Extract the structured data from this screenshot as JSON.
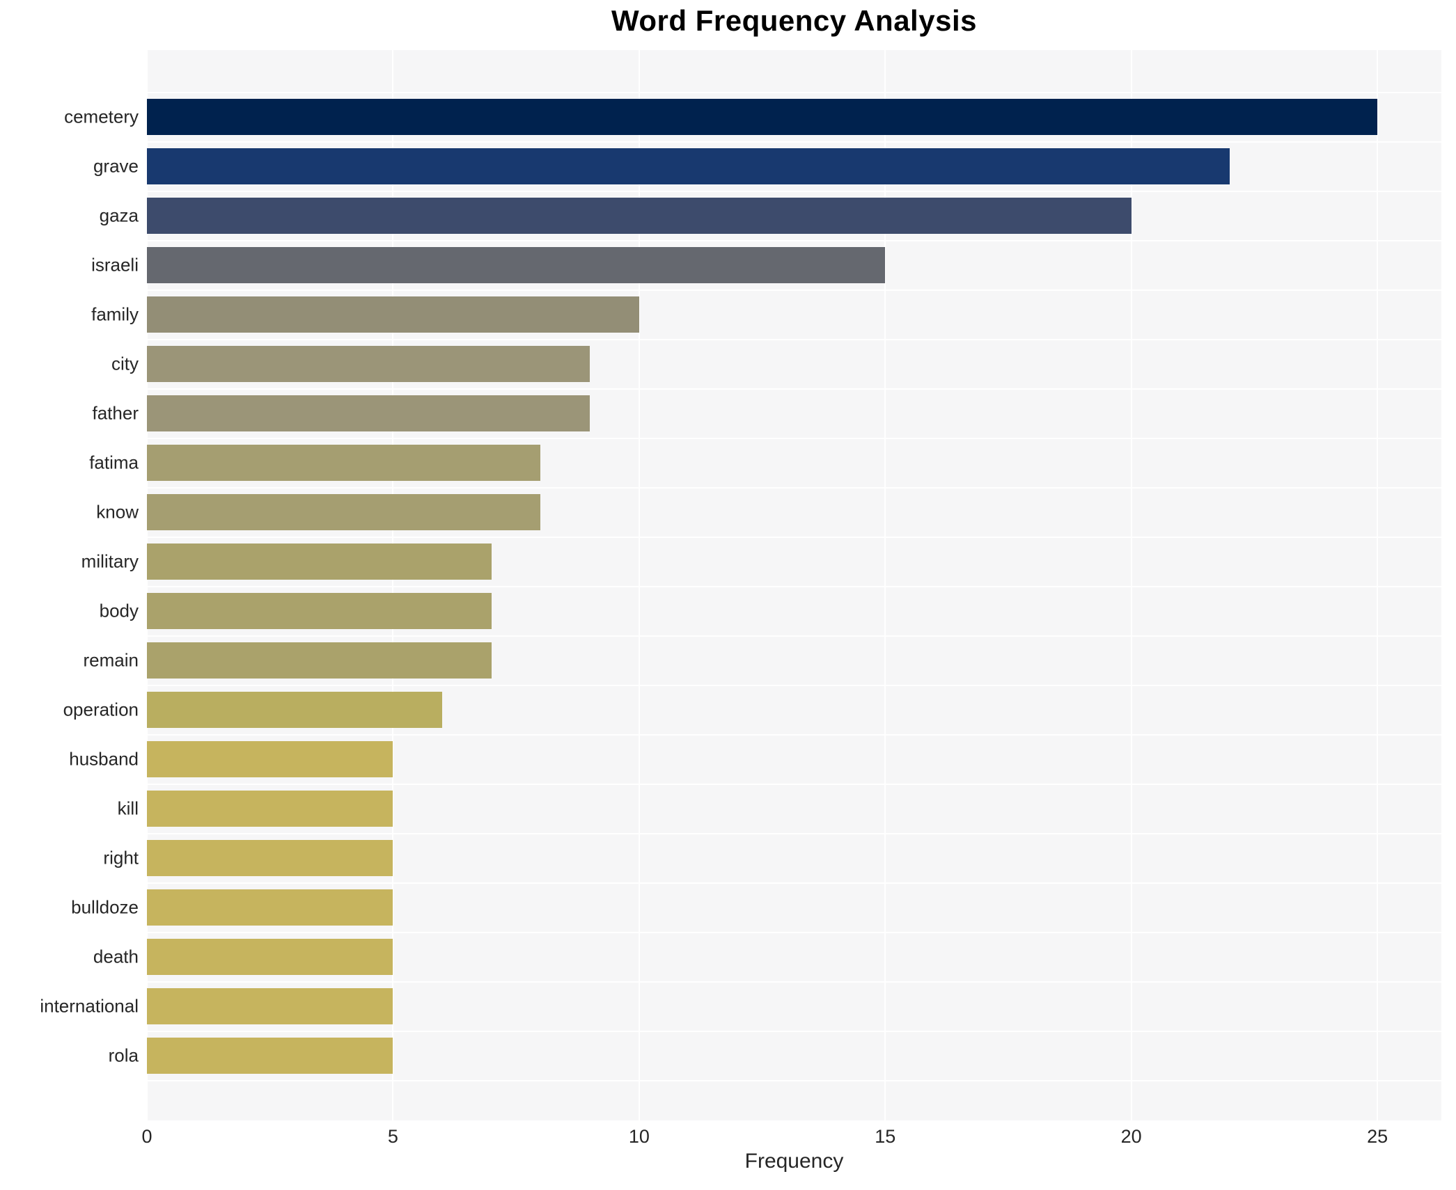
{
  "chart_data": {
    "type": "bar",
    "orientation": "horizontal",
    "title": "Word Frequency Analysis",
    "xlabel": "Frequency",
    "ylabel": "",
    "categories": [
      "cemetery",
      "grave",
      "gaza",
      "israeli",
      "family",
      "city",
      "father",
      "fatima",
      "know",
      "military",
      "body",
      "remain",
      "operation",
      "husband",
      "kill",
      "right",
      "bulldoze",
      "death",
      "international",
      "rola"
    ],
    "values": [
      25,
      22,
      20,
      15,
      10,
      9,
      9,
      8,
      8,
      7,
      7,
      7,
      6,
      5,
      5,
      5,
      5,
      5,
      5,
      5
    ],
    "bar_colors": [
      "#00224e",
      "#18396f",
      "#3d4b6c",
      "#65686f",
      "#938e76",
      "#9b9578",
      "#9b9578",
      "#a59e71",
      "#a59e71",
      "#aaa26b",
      "#aaa26b",
      "#aaa26b",
      "#b9ae60",
      "#c6b45e",
      "#c6b45e",
      "#c6b45e",
      "#c6b45e",
      "#c6b45e",
      "#c6b45e",
      "#c6b45e"
    ],
    "xticks": [
      0,
      5,
      10,
      15,
      20,
      25
    ],
    "xlim": [
      0,
      26.3
    ],
    "grid": true,
    "legend_position": "none",
    "plot_bg": "#f6f6f7",
    "figure_bg": "#ffffff",
    "gridline_color": "#ffffff",
    "text_color": "#262626"
  }
}
